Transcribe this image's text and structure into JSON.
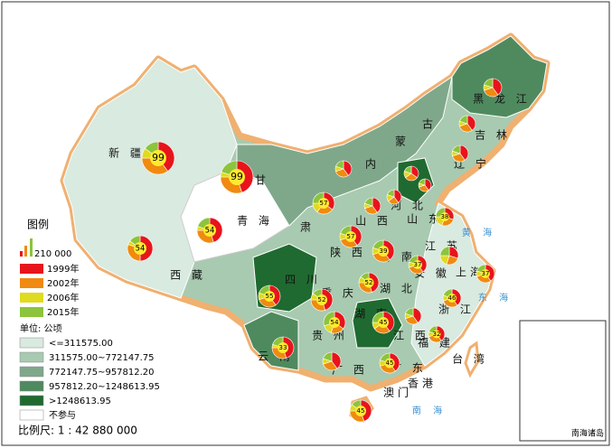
{
  "map": {
    "provinces": [
      "新 疆",
      "西 藏",
      "青 海",
      "甘",
      "肃",
      "内",
      "蒙",
      "古",
      "黑 龙 江",
      "吉 林",
      "辽 宁",
      "河 北",
      "山 西",
      "陕 西",
      "河 南",
      "山 东",
      "江 苏",
      "安 徽",
      "四 川",
      "湖 北",
      "重 庆",
      "贵 州",
      "湖 南",
      "江 西",
      "浙 江",
      "福 建",
      "云 南",
      "广 西",
      "广 东",
      "台 湾",
      "香港",
      "澳门",
      "上海"
    ],
    "seas": [
      "黄 海",
      "东 海",
      "南 海"
    ],
    "pies": [
      {
        "label": 99,
        "slices": [
          40,
          35,
          10,
          15
        ]
      },
      {
        "label": 99,
        "slices": [
          45,
          30,
          5,
          20
        ]
      },
      {
        "label": 54,
        "slices": [
          50,
          30,
          5,
          15
        ]
      },
      {
        "label": 54,
        "slices": [
          45,
          30,
          5,
          20
        ]
      },
      {
        "slices": [
          40,
          30,
          10,
          20
        ]
      },
      {
        "label": 57,
        "slices": [
          35,
          25,
          15,
          25
        ]
      },
      {
        "label": 57,
        "slices": [
          40,
          30,
          10,
          20
        ]
      },
      {
        "slices": [
          40,
          30,
          10,
          20
        ]
      },
      {
        "slices": [
          40,
          25,
          15,
          20
        ]
      },
      {
        "slices": [
          35,
          30,
          15,
          20
        ]
      },
      {
        "slices": [
          40,
          30,
          10,
          20
        ]
      },
      {
        "label": 39,
        "slices": [
          40,
          30,
          10,
          20
        ]
      },
      {
        "label": 38,
        "slices": [
          30,
          25,
          20,
          25
        ]
      },
      {
        "slices": [
          30,
          25,
          20,
          25
        ]
      },
      {
        "label": 37,
        "slices": [
          40,
          30,
          10,
          20
        ]
      },
      {
        "label": 37,
        "slices": [
          40,
          30,
          10,
          20
        ]
      },
      {
        "label": 52,
        "slices": [
          45,
          30,
          10,
          15
        ]
      },
      {
        "label": 52,
        "slices": [
          45,
          30,
          10,
          15
        ]
      },
      {
        "label": 55,
        "slices": [
          40,
          30,
          10,
          20
        ]
      },
      {
        "label": 54,
        "slices": [
          35,
          20,
          15,
          30
        ]
      },
      {
        "label": 45,
        "slices": [
          40,
          25,
          10,
          25
        ]
      },
      {
        "slices": [
          40,
          30,
          10,
          20
        ]
      },
      {
        "label": 46,
        "slices": [
          40,
          30,
          10,
          20
        ]
      },
      {
        "label": 32,
        "slices": [
          40,
          30,
          10,
          20
        ]
      },
      {
        "label": 33,
        "slices": [
          45,
          30,
          5,
          20
        ]
      },
      {
        "slices": [
          40,
          30,
          10,
          20
        ]
      },
      {
        "label": 45,
        "slices": [
          40,
          30,
          10,
          20
        ]
      },
      {
        "label": 45,
        "slices": [
          45,
          30,
          10,
          15
        ]
      },
      {
        "slices": [
          40,
          30,
          10,
          20
        ]
      },
      {
        "slices": [
          40,
          30,
          10,
          20
        ]
      },
      {
        "slices": [
          40,
          30,
          10,
          20
        ]
      }
    ],
    "legend": {
      "title": "图例",
      "pie_scale": "210 000",
      "years": [
        {
          "label": "1999年",
          "color": "#e8141c"
        },
        {
          "label": "2002年",
          "color": "#f08a10"
        },
        {
          "label": "2006年",
          "color": "#e0da20"
        },
        {
          "label": "2015年",
          "color": "#8cc43c"
        }
      ],
      "unit": "单位: 公顷",
      "classes": [
        {
          "label": "<=311575.00",
          "color": "#d9eae0"
        },
        {
          "label": "311575.00~772147.75",
          "color": "#a8cab0"
        },
        {
          "label": "772147.75~957812.20",
          "color": "#7fa88a"
        },
        {
          "label": "957812.20~1248613.95",
          "color": "#4f8a5e"
        },
        {
          "label": ">1248613.95",
          "color": "#1f6a30"
        },
        {
          "label": "不参与",
          "color": "#ffffff"
        }
      ]
    },
    "scale": "比例尺: 1 : 42 880 000",
    "inset": "南海诸岛"
  }
}
